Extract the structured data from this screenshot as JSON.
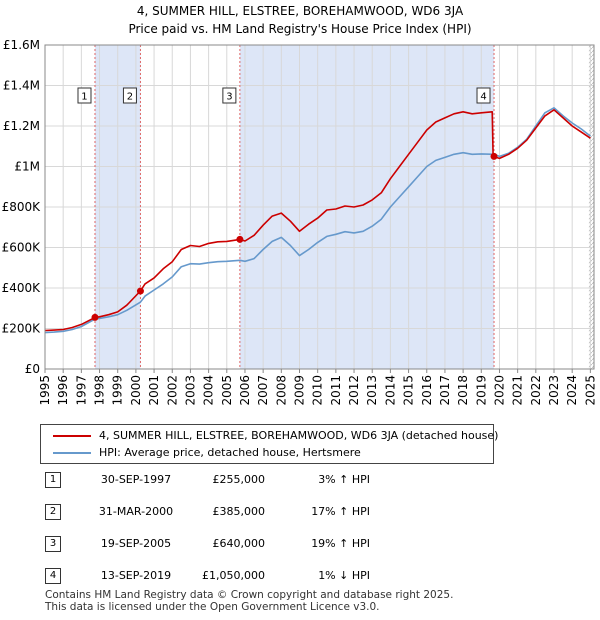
{
  "header": {
    "title_line1": "4, SUMMER HILL, ELSTREE, BOREHAMWOOD, WD6 3JA",
    "title_line2": "Price paid vs. HM Land Registry's House Price Index (HPI)"
  },
  "chart_data": {
    "type": "line",
    "xlim": [
      1995,
      2025.2
    ],
    "ylim": [
      0,
      1600000
    ],
    "x_ticks": [
      "1995",
      "1996",
      "1997",
      "1998",
      "1999",
      "2000",
      "2001",
      "2002",
      "2003",
      "2004",
      "2005",
      "2006",
      "2007",
      "2008",
      "2009",
      "2010",
      "2011",
      "2012",
      "2013",
      "2014",
      "2015",
      "2016",
      "2017",
      "2018",
      "2019",
      "2020",
      "2021",
      "2022",
      "2023",
      "2024",
      "2025"
    ],
    "y_ticks": [
      {
        "value": 0,
        "label": "£0"
      },
      {
        "value": 200000,
        "label": "£200K"
      },
      {
        "value": 400000,
        "label": "£400K"
      },
      {
        "value": 600000,
        "label": "£600K"
      },
      {
        "value": 800000,
        "label": "£800K"
      },
      {
        "value": 1000000,
        "label": "£1M"
      },
      {
        "value": 1200000,
        "label": "£1.2M"
      },
      {
        "value": 1400000,
        "label": "£1.4M"
      },
      {
        "value": 1600000,
        "label": "£1.6M"
      }
    ],
    "grid": true,
    "colors": {
      "property": "#cc0000",
      "hpi": "#6699cc",
      "shade": "#dde6f7",
      "vline": "#dd6666"
    },
    "shaded_periods": [
      [
        1997.75,
        2000.25
      ],
      [
        2005.72,
        2019.7
      ]
    ],
    "end_hatch_start": 2024.92,
    "series": [
      {
        "name": "4, SUMMER HILL, ELSTREE, BOREHAMWOOD, WD6 3JA (detached house)",
        "color": "#cc0000",
        "points": [
          [
            1995.0,
            190000
          ],
          [
            1995.5,
            192000
          ],
          [
            1996.0,
            195000
          ],
          [
            1996.5,
            205000
          ],
          [
            1997.0,
            220000
          ],
          [
            1997.75,
            255000
          ],
          [
            1998.0,
            258000
          ],
          [
            1998.5,
            268000
          ],
          [
            1999.0,
            282000
          ],
          [
            1999.5,
            315000
          ],
          [
            2000.25,
            385000
          ],
          [
            2000.5,
            420000
          ],
          [
            2001.0,
            450000
          ],
          [
            2001.5,
            495000
          ],
          [
            2002.0,
            530000
          ],
          [
            2002.5,
            590000
          ],
          [
            2003.0,
            610000
          ],
          [
            2003.5,
            605000
          ],
          [
            2004.0,
            620000
          ],
          [
            2004.5,
            628000
          ],
          [
            2005.0,
            630000
          ],
          [
            2005.72,
            640000
          ],
          [
            2006.0,
            632000
          ],
          [
            2006.5,
            660000
          ],
          [
            2007.0,
            710000
          ],
          [
            2007.5,
            755000
          ],
          [
            2008.0,
            770000
          ],
          [
            2008.5,
            730000
          ],
          [
            2009.0,
            680000
          ],
          [
            2009.5,
            715000
          ],
          [
            2010.0,
            745000
          ],
          [
            2010.5,
            785000
          ],
          [
            2011.0,
            790000
          ],
          [
            2011.5,
            805000
          ],
          [
            2012.0,
            800000
          ],
          [
            2012.5,
            810000
          ],
          [
            2013.0,
            835000
          ],
          [
            2013.5,
            870000
          ],
          [
            2014.0,
            940000
          ],
          [
            2014.5,
            1000000
          ],
          [
            2015.0,
            1060000
          ],
          [
            2015.5,
            1120000
          ],
          [
            2016.0,
            1180000
          ],
          [
            2016.5,
            1220000
          ],
          [
            2017.0,
            1240000
          ],
          [
            2017.5,
            1260000
          ],
          [
            2018.0,
            1270000
          ],
          [
            2018.5,
            1260000
          ],
          [
            2019.0,
            1265000
          ],
          [
            2019.6,
            1270000
          ],
          [
            2019.65,
            1050000
          ],
          [
            2020.0,
            1040000
          ],
          [
            2020.5,
            1060000
          ],
          [
            2021.0,
            1090000
          ],
          [
            2021.5,
            1130000
          ],
          [
            2022.0,
            1190000
          ],
          [
            2022.5,
            1250000
          ],
          [
            2023.0,
            1280000
          ],
          [
            2023.5,
            1240000
          ],
          [
            2024.0,
            1200000
          ],
          [
            2024.5,
            1170000
          ],
          [
            2025.0,
            1140000
          ]
        ]
      },
      {
        "name": "HPI: Average price, detached house, Hertsmere",
        "color": "#6699cc",
        "points": [
          [
            1995.0,
            180000
          ],
          [
            1995.5,
            182000
          ],
          [
            1996.0,
            186000
          ],
          [
            1996.5,
            195000
          ],
          [
            1997.0,
            210000
          ],
          [
            1997.75,
            247000
          ],
          [
            1998.0,
            250000
          ],
          [
            1998.5,
            258000
          ],
          [
            1999.0,
            268000
          ],
          [
            1999.5,
            290000
          ],
          [
            2000.25,
            330000
          ],
          [
            2000.5,
            360000
          ],
          [
            2001.0,
            390000
          ],
          [
            2001.5,
            420000
          ],
          [
            2002.0,
            455000
          ],
          [
            2002.5,
            505000
          ],
          [
            2003.0,
            520000
          ],
          [
            2003.5,
            518000
          ],
          [
            2004.0,
            525000
          ],
          [
            2004.5,
            530000
          ],
          [
            2005.0,
            532000
          ],
          [
            2005.72,
            537000
          ],
          [
            2006.0,
            532000
          ],
          [
            2006.5,
            545000
          ],
          [
            2007.0,
            590000
          ],
          [
            2007.5,
            630000
          ],
          [
            2008.0,
            650000
          ],
          [
            2008.5,
            610000
          ],
          [
            2009.0,
            560000
          ],
          [
            2009.5,
            590000
          ],
          [
            2010.0,
            625000
          ],
          [
            2010.5,
            655000
          ],
          [
            2011.0,
            665000
          ],
          [
            2011.5,
            678000
          ],
          [
            2012.0,
            672000
          ],
          [
            2012.5,
            680000
          ],
          [
            2013.0,
            705000
          ],
          [
            2013.5,
            740000
          ],
          [
            2014.0,
            800000
          ],
          [
            2014.5,
            850000
          ],
          [
            2015.0,
            900000
          ],
          [
            2015.5,
            950000
          ],
          [
            2016.0,
            1000000
          ],
          [
            2016.5,
            1030000
          ],
          [
            2017.0,
            1045000
          ],
          [
            2017.5,
            1060000
          ],
          [
            2018.0,
            1068000
          ],
          [
            2018.5,
            1060000
          ],
          [
            2019.0,
            1062000
          ],
          [
            2019.7,
            1060000
          ],
          [
            2020.0,
            1050000
          ],
          [
            2020.5,
            1065000
          ],
          [
            2021.0,
            1095000
          ],
          [
            2021.5,
            1135000
          ],
          [
            2022.0,
            1200000
          ],
          [
            2022.5,
            1265000
          ],
          [
            2023.0,
            1290000
          ],
          [
            2023.5,
            1250000
          ],
          [
            2024.0,
            1215000
          ],
          [
            2024.5,
            1185000
          ],
          [
            2025.0,
            1150000
          ]
        ]
      }
    ],
    "markers": [
      {
        "label": "1",
        "x": 1997.75,
        "y": 255000
      },
      {
        "label": "2",
        "x": 2000.25,
        "y": 385000
      },
      {
        "label": "3",
        "x": 2005.72,
        "y": 640000
      },
      {
        "label": "4",
        "x": 2019.7,
        "y": 1050000
      }
    ]
  },
  "legend": {
    "items": [
      {
        "label": "4, SUMMER HILL, ELSTREE, BOREHAMWOOD, WD6 3JA (detached house)",
        "color": "#cc0000"
      },
      {
        "label": "HPI: Average price, detached house, Hertsmere",
        "color": "#6699cc"
      }
    ]
  },
  "sales": [
    {
      "num": "1",
      "date": "30-SEP-1997",
      "price": "£255,000",
      "hpi": "3% ↑ HPI"
    },
    {
      "num": "2",
      "date": "31-MAR-2000",
      "price": "£385,000",
      "hpi": "17% ↑ HPI"
    },
    {
      "num": "3",
      "date": "19-SEP-2005",
      "price": "£640,000",
      "hpi": "19% ↑ HPI"
    },
    {
      "num": "4",
      "date": "13-SEP-2019",
      "price": "£1,050,000",
      "hpi": "1% ↓ HPI"
    }
  ],
  "footer": {
    "line1": "Contains HM Land Registry data © Crown copyright and database right 2025.",
    "line2": "This data is licensed under the Open Government Licence v3.0."
  }
}
